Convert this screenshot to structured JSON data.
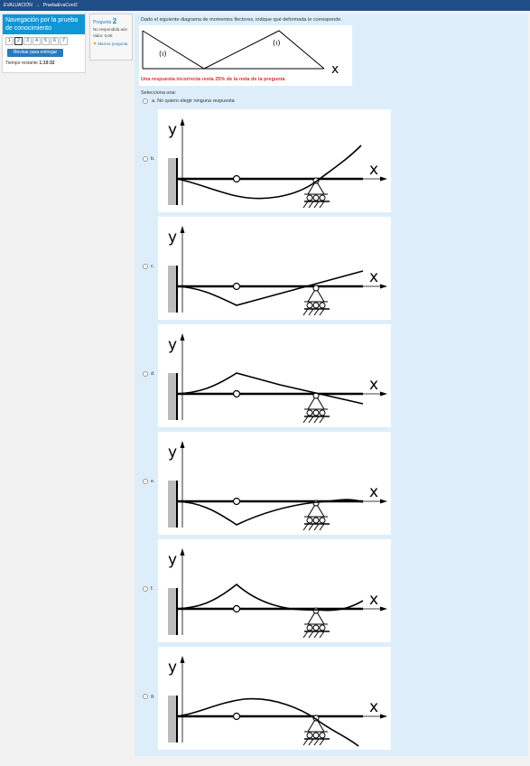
{
  "topbar": {
    "course": "EVALUACIÓN",
    "separator": "→",
    "quiz": "PruebaEvaCont2"
  },
  "nav": {
    "title": "Navegación por la prueba de conocimiento",
    "questions": [
      "1",
      "2",
      "3",
      "4",
      "5",
      "6",
      "7"
    ],
    "current": "2",
    "submit_label": "Revisar para entregar",
    "time_label": "Tiempo restante",
    "time_value": "1:19:32"
  },
  "question_info": {
    "label": "Pregunta",
    "number": "2",
    "status": "No respondida aún",
    "value": "Valor: 0,60",
    "flag_label": "Marcar pregunta"
  },
  "question": {
    "text": "Dado el siguiente diagrama de momentos flectores, indique qué deformada le corresponde.",
    "diagram_axis": "x",
    "warning": "Una respuesta incorrecta resta 25% de la nota de la pregunta",
    "select_label": "Selecciona una:",
    "option_a": "a. No quiero elegir ninguna respuesta",
    "axis_y": "y",
    "axis_x": "x"
  },
  "options": [
    {
      "letter": "b.",
      "shape": "sag-rise"
    },
    {
      "letter": "c.",
      "shape": "cusp-down-rise"
    },
    {
      "letter": "d.",
      "shape": "cusp-up-fall"
    },
    {
      "letter": "e.",
      "shape": "cusp-down-wave"
    },
    {
      "letter": "f.",
      "shape": "cusp-up-wave"
    },
    {
      "letter": "g.",
      "shape": "arch-fall"
    }
  ],
  "colors": {
    "topbar": "#1f4f86",
    "nav_header": "#0f96d7",
    "content_bg": "#ddeefa",
    "warning": "#d9322b",
    "link": "#1a7dc4"
  }
}
